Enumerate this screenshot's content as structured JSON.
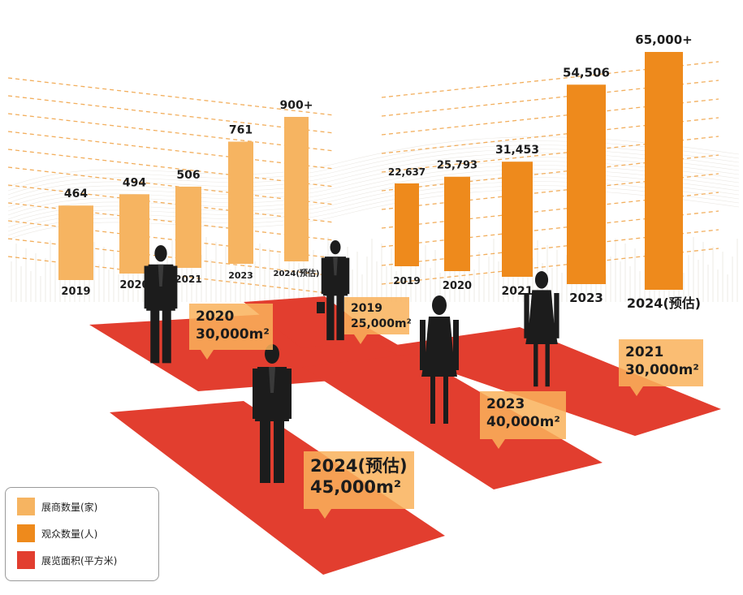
{
  "colors": {
    "exhibitors": "#F6B461",
    "visitors": "#EE8A1C",
    "area": "#E23E2F",
    "area_label_bg": "#F9B25A",
    "grid": "#F0A040",
    "silhouette": "#1c1c1c"
  },
  "legend": {
    "items": [
      {
        "label": "展商数量(家)",
        "color": "#F6B461"
      },
      {
        "label": "观众数量(人)",
        "color": "#EE8A1C"
      },
      {
        "label": "展览面积(平方米)",
        "color": "#E23E2F"
      }
    ]
  },
  "chart_data": [
    {
      "type": "bar",
      "series": [
        {
          "name": "展商数量(家)",
          "values": [
            464,
            494,
            506,
            761,
            900
          ]
        }
      ],
      "categories": [
        "2019",
        "2020",
        "2021",
        "2023",
        "2024(预估)"
      ],
      "value_labels": [
        "464",
        "494",
        "506",
        "761",
        "900+"
      ],
      "grid": true
    },
    {
      "type": "bar",
      "series": [
        {
          "name": "观众数量(人)",
          "values": [
            22637,
            25793,
            31453,
            54506,
            65000
          ]
        }
      ],
      "categories": [
        "2019",
        "2020",
        "2021",
        "2023",
        "2024(预估)"
      ],
      "value_labels": [
        "22,637",
        "25,793",
        "31,453",
        "54,506",
        "65,000+"
      ],
      "grid": true
    },
    {
      "type": "table",
      "series": [
        {
          "name": "展览面积(平方米)",
          "values": [
            25000,
            30000,
            30000,
            40000,
            45000
          ]
        }
      ],
      "categories": [
        "2019",
        "2020",
        "2021",
        "2023",
        "2024(预估)"
      ],
      "labels": [
        {
          "year": "2019",
          "area": "25,000m²"
        },
        {
          "year": "2020",
          "area": "30,000m²"
        },
        {
          "year": "2021",
          "area": "30,000m²"
        },
        {
          "year": "2023",
          "area": "40,000m²"
        },
        {
          "year": "2024(预估)",
          "area": "45,000m²"
        }
      ]
    }
  ]
}
